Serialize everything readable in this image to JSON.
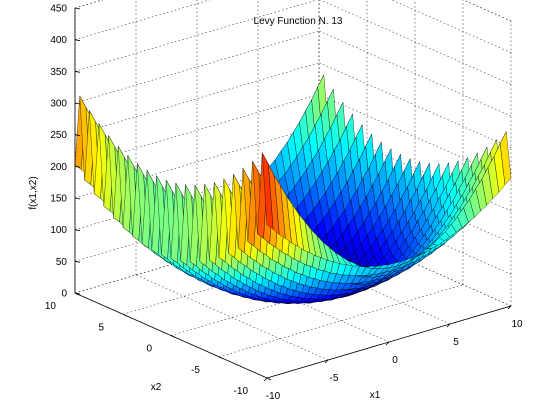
{
  "chart_data": {
    "type": "surface",
    "title": "Levy Function N. 13",
    "xlabel": "x1",
    "ylabel": "x2",
    "zlabel": "f(x1,x2)",
    "xlim": [
      -10,
      10
    ],
    "ylim": [
      -10,
      10
    ],
    "zlim": [
      0,
      450
    ],
    "x_ticks": [
      "-10",
      "-5",
      "0",
      "5",
      "10"
    ],
    "y_ticks": [
      "-10",
      "-5",
      "0",
      "5",
      "10"
    ],
    "z_ticks": [
      "0",
      "50",
      "100",
      "150",
      "200",
      "250",
      "300",
      "350",
      "400",
      "450"
    ],
    "x_tick_values": [
      -10,
      -5,
      0,
      5,
      10
    ],
    "y_tick_values": [
      -10,
      -5,
      0,
      5,
      10
    ],
    "z_tick_values": [
      0,
      50,
      100,
      150,
      200,
      250,
      300,
      350,
      400,
      450
    ],
    "grid": true,
    "colormap": "jet",
    "grid_resolution": 40
  }
}
